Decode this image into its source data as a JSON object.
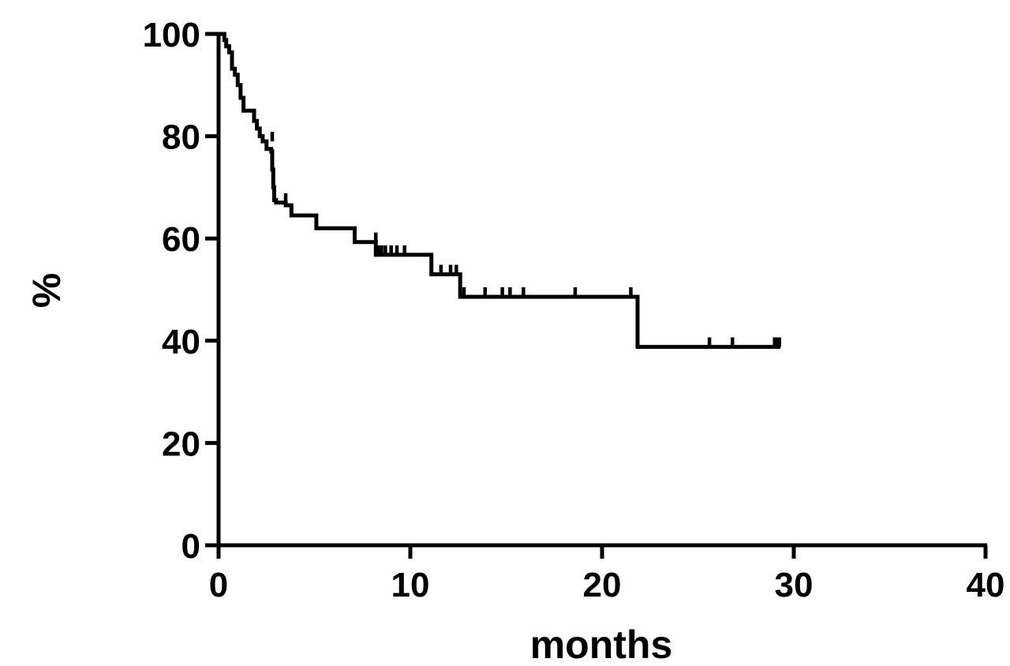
{
  "chart_data": {
    "type": "line",
    "title": "",
    "xlabel": "months",
    "ylabel": "%",
    "xlim": [
      0,
      40
    ],
    "ylim": [
      0,
      100
    ],
    "xticks": [
      0,
      10,
      20,
      30,
      40
    ],
    "yticks": [
      0,
      20,
      40,
      60,
      80,
      100
    ],
    "grid": false,
    "line_color": "#000000",
    "series": [
      {
        "step": true,
        "x": [
          0,
          0.3,
          0.4,
          0.55,
          0.7,
          0.85,
          1.0,
          1.15,
          1.3,
          1.85,
          2.0,
          2.15,
          2.3,
          2.5,
          2.75,
          2.8,
          2.85,
          2.9,
          3.0,
          3.5,
          3.8,
          5.1,
          7.1,
          8.2,
          11.1,
          12.6,
          21.85,
          29.3
        ],
        "y": [
          100,
          98.8,
          97.6,
          96.4,
          93.2,
          92.0,
          90.0,
          87.5,
          85.0,
          83.0,
          81.5,
          80.0,
          79.0,
          77.5,
          77.0,
          73.5,
          70.0,
          67.5,
          67.0,
          66.5,
          64.5,
          62.0,
          59.3,
          56.8,
          53.0,
          48.6,
          38.8,
          38.8
        ],
        "censored": [
          {
            "x": 2.5,
            "y": 77.5
          },
          {
            "x": 2.8,
            "y": 79.0
          },
          {
            "x": 3.5,
            "y": 67.0
          },
          {
            "x": 8.2,
            "y": 59.3
          },
          {
            "x": 8.35,
            "y": 56.8
          },
          {
            "x": 8.5,
            "y": 56.8
          },
          {
            "x": 8.7,
            "y": 56.8
          },
          {
            "x": 9.0,
            "y": 56.8
          },
          {
            "x": 9.3,
            "y": 56.8
          },
          {
            "x": 9.7,
            "y": 56.8
          },
          {
            "x": 11.6,
            "y": 53.0
          },
          {
            "x": 12.1,
            "y": 53.0
          },
          {
            "x": 12.4,
            "y": 53.0
          },
          {
            "x": 12.8,
            "y": 48.6
          },
          {
            "x": 13.9,
            "y": 48.6
          },
          {
            "x": 14.8,
            "y": 48.6
          },
          {
            "x": 15.2,
            "y": 48.6
          },
          {
            "x": 15.9,
            "y": 48.6
          },
          {
            "x": 18.6,
            "y": 48.6
          },
          {
            "x": 21.5,
            "y": 48.6
          },
          {
            "x": 25.6,
            "y": 38.8
          },
          {
            "x": 26.8,
            "y": 38.8
          },
          {
            "x": 29.0,
            "y": 38.8
          },
          {
            "x": 29.15,
            "y": 38.8
          },
          {
            "x": 29.25,
            "y": 38.8
          }
        ]
      }
    ]
  }
}
